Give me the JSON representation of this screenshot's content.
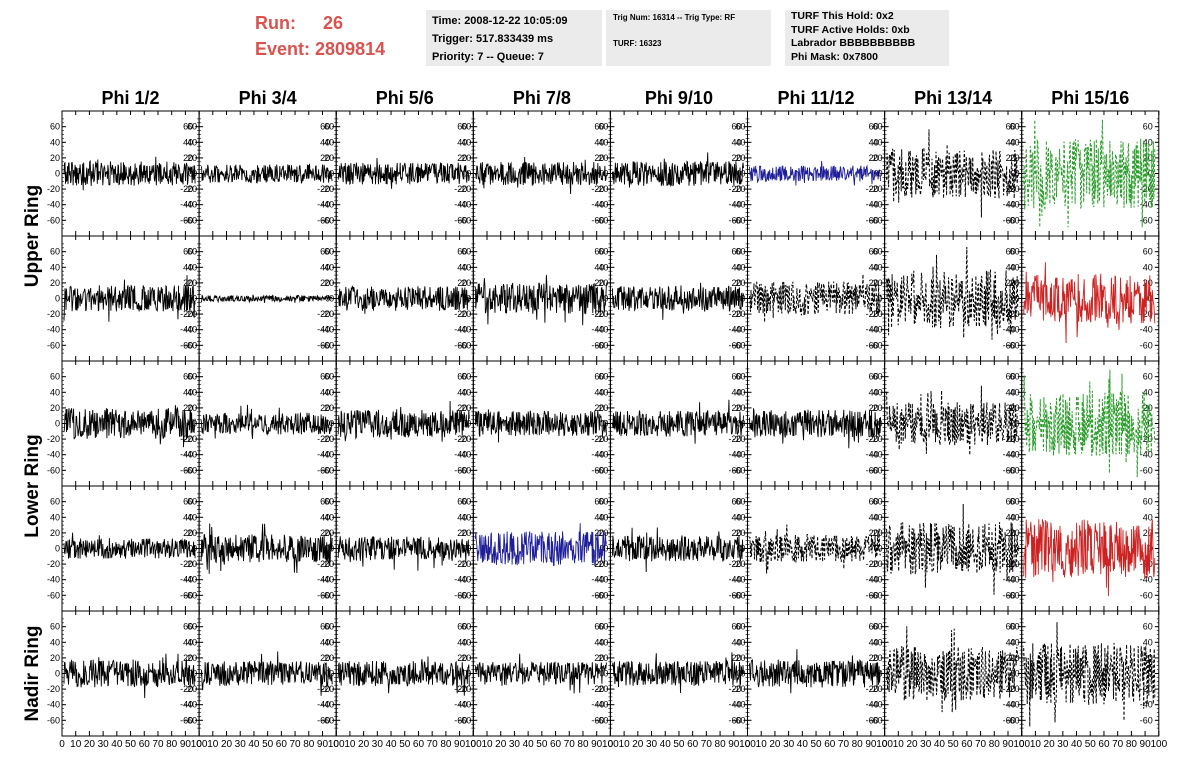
{
  "header": {
    "run_label": "Run:",
    "run_value": "26",
    "event_label": "Event:",
    "event_value": "2809814",
    "trigger_info": {
      "time": "Time: 2008-12-22 10:05:09",
      "trigger": "Trigger: 517.833439 ms",
      "priority": "Priority: 7 -- Queue: 7"
    },
    "trig_info": {
      "trig_line": "Trig Num: 16314 -- Trig Type: RF",
      "turf_line": "TURF: 16323"
    },
    "turf_info": {
      "this_hold": "TURF This Hold: 0x2",
      "active_holds": "TURF Active Holds: 0xb",
      "labrador": "Labrador BBBBBBBBBB",
      "phi_mask": "Phi Mask: 0x7800"
    }
  },
  "colors": {
    "run_text": "#d9534f",
    "info_bg": "#ebebeb",
    "black": "#000000",
    "blue": "#1f1f9a",
    "green": "#2a9d2a",
    "red": "#cc2222"
  },
  "chart_data": {
    "type": "line",
    "description_note": "",
    "columns": [
      "Phi 1/2",
      "Phi 3/4",
      "Phi 5/6",
      "Phi 7/8",
      "Phi 9/10",
      "Phi 11/12",
      "Phi 13/14",
      "Phi 15/16"
    ],
    "rows": [
      "Upper Ring",
      "Lower Ring",
      "Nadir Ring"
    ],
    "xlim": [
      0,
      100
    ],
    "ylim": [
      -75,
      75
    ],
    "x_ticks": [
      0,
      10,
      20,
      30,
      40,
      50,
      60,
      70,
      80,
      90,
      100
    ],
    "y_ticks": [
      -60,
      -40,
      -20,
      0,
      20,
      40,
      60
    ],
    "panels": [
      [
        {
          "style": "solid",
          "color": "black",
          "amp": 16
        },
        {
          "style": "solid",
          "color": "black",
          "amp": 12
        },
        {
          "style": "solid",
          "color": "black",
          "amp": 14
        },
        {
          "style": "solid",
          "color": "black",
          "amp": 15
        },
        {
          "style": "solid",
          "color": "black",
          "amp": 16
        },
        {
          "style": "solid",
          "color": "blue",
          "amp": 10
        },
        {
          "style": "dashed",
          "color": "black",
          "amp": 32
        },
        {
          "style": "dashed",
          "color": "green",
          "amp": 45
        }
      ],
      [
        {
          "style": "solid",
          "color": "black",
          "amp": 17
        },
        {
          "style": "solid",
          "color": "black",
          "amp": 4
        },
        {
          "style": "solid",
          "color": "black",
          "amp": 16
        },
        {
          "style": "solid",
          "color": "black",
          "amp": 20
        },
        {
          "style": "solid",
          "color": "black",
          "amp": 16
        },
        {
          "style": "dashed",
          "color": "black",
          "amp": 22
        },
        {
          "style": "dashed",
          "color": "black",
          "amp": 38
        },
        {
          "style": "solid",
          "color": "red",
          "amp": 32
        }
      ],
      [
        {
          "style": "solid",
          "color": "black",
          "amp": 20
        },
        {
          "style": "solid",
          "color": "black",
          "amp": 14
        },
        {
          "style": "solid",
          "color": "black",
          "amp": 18
        },
        {
          "style": "solid",
          "color": "black",
          "amp": 17
        },
        {
          "style": "solid",
          "color": "black",
          "amp": 17
        },
        {
          "style": "solid",
          "color": "black",
          "amp": 18
        },
        {
          "style": "dashed",
          "color": "black",
          "amp": 28
        },
        {
          "style": "dashed",
          "color": "green",
          "amp": 42
        }
      ],
      [
        {
          "style": "solid",
          "color": "black",
          "amp": 13
        },
        {
          "style": "solid",
          "color": "black",
          "amp": 18
        },
        {
          "style": "solid",
          "color": "black",
          "amp": 16
        },
        {
          "style": "solid",
          "color": "blue",
          "amp": 22
        },
        {
          "style": "solid",
          "color": "black",
          "amp": 17
        },
        {
          "style": "dashed",
          "color": "black",
          "amp": 18
        },
        {
          "style": "dashed",
          "color": "black",
          "amp": 34
        },
        {
          "style": "solid",
          "color": "red",
          "amp": 38
        }
      ],
      [
        {
          "style": "solid",
          "color": "black",
          "amp": 18
        },
        {
          "style": "solid",
          "color": "black",
          "amp": 16
        },
        {
          "style": "solid",
          "color": "black",
          "amp": 16
        },
        {
          "style": "solid",
          "color": "black",
          "amp": 15
        },
        {
          "style": "solid",
          "color": "black",
          "amp": 16
        },
        {
          "style": "solid",
          "color": "black",
          "amp": 18
        },
        {
          "style": "dashed",
          "color": "black",
          "amp": 35
        },
        {
          "style": "dashed",
          "color": "black",
          "amp": 40
        }
      ]
    ]
  }
}
